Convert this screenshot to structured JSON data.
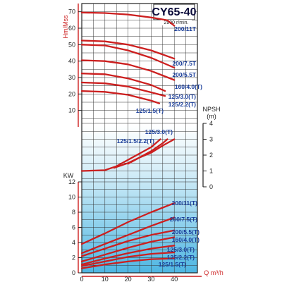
{
  "chart_data": {
    "type": "line",
    "title": "CY65-40",
    "subtitle": "2900 r/min.",
    "xlabel": "Q m³/h",
    "xticks": [
      "0",
      "10",
      "20",
      "30",
      "40"
    ],
    "xlim": [
      0,
      50
    ],
    "colors": {
      "curve": "#cc1f1f",
      "label": "#1a3e9a",
      "axis_red": "#cc1f1f",
      "grid": "#333333",
      "frame": "#222222"
    },
    "head": {
      "ylabel": "Hm/Mss",
      "yticks": [
        "10",
        "20",
        "30",
        "40",
        "50",
        "60",
        "70"
      ],
      "ylim": [
        0,
        75
      ],
      "series": [
        {
          "name": "200/11T",
          "x": [
            0,
            10,
            20,
            30,
            37,
            40
          ],
          "y": [
            69.5,
            69.2,
            68.3,
            66.5,
            64.8,
            61.5
          ]
        },
        {
          "name": "200/7.5T",
          "x": [
            0,
            10,
            20,
            30,
            40
          ],
          "y": [
            52.5,
            52,
            50,
            46.5,
            41.5
          ]
        },
        {
          "name": "200/5.5T",
          "x": [
            0,
            10,
            20,
            30,
            40
          ],
          "y": [
            50,
            49.5,
            46.5,
            42,
            36
          ]
        },
        {
          "name": "160/4.0(T)",
          "x": [
            0,
            10,
            20,
            30,
            40
          ],
          "y": [
            40.5,
            40,
            38,
            34,
            28.5
          ]
        },
        {
          "name": "125/3.0(T)",
          "x": [
            0,
            10,
            20,
            30,
            36
          ],
          "y": [
            32.5,
            32,
            29.5,
            25.5,
            21.8
          ]
        },
        {
          "name": "125/2.2(T)",
          "x": [
            0,
            10,
            20,
            30,
            36
          ],
          "y": [
            27,
            26.5,
            24.5,
            21,
            18.8
          ]
        },
        {
          "name": "125/1.5(T)",
          "x": [
            0,
            10,
            20,
            30,
            33.5
          ],
          "y": [
            21.8,
            21.3,
            19.5,
            16,
            14.3
          ]
        }
      ],
      "labels": [
        "200/11T",
        "200/7.5T",
        "200/5.5T",
        "160/4.0(T)",
        "125/3.0(T)",
        "125/2.2(T)",
        "125/1.5(T)"
      ]
    },
    "npsh": {
      "ylabel": "NPSH",
      "unit": "(m)",
      "yticks": [
        "0",
        "1",
        "2",
        "3",
        "4"
      ],
      "ylim": [
        0,
        4
      ],
      "series": [
        {
          "name": "125/3.0(T)",
          "x": [
            0,
            10,
            15,
            20,
            25,
            30,
            34
          ],
          "y": [
            1.0,
            1.05,
            1.3,
            1.7,
            2.1,
            2.5,
            3.0
          ]
        },
        {
          "name": "125/1.5/2.2(T)",
          "x": [
            14,
            20,
            25,
            30,
            35,
            37
          ],
          "y": [
            1.2,
            1.5,
            1.85,
            2.25,
            2.75,
            3.0
          ]
        },
        {
          "name": "",
          "x": [
            20,
            25,
            30,
            35,
            40
          ],
          "y": [
            1.45,
            1.85,
            2.15,
            2.6,
            3.0
          ]
        }
      ],
      "labels": [
        "125/3.0(T)",
        "125/1.5/2.2(T)"
      ]
    },
    "power": {
      "ylabel": "KW",
      "yticks": [
        "0",
        "2",
        "4",
        "6",
        "8",
        "10",
        "12"
      ],
      "ylim": [
        0,
        12
      ],
      "series": [
        {
          "name": "200/11(T)",
          "x": [
            0,
            10,
            20,
            30,
            40
          ],
          "y": [
            3.8,
            5.2,
            6.7,
            8.0,
            9.2
          ]
        },
        {
          "name": "200/7.5(T)",
          "x": [
            0,
            10,
            20,
            30,
            40
          ],
          "y": [
            2.6,
            3.8,
            5.0,
            6.2,
            7.3
          ]
        },
        {
          "name": "200/5.5(T)",
          "x": [
            0,
            10,
            20,
            30,
            40
          ],
          "y": [
            2.2,
            3.2,
            4.2,
            5.0,
            5.6
          ]
        },
        {
          "name": "160/4.0(T)",
          "x": [
            0,
            10,
            20,
            30,
            40
          ],
          "y": [
            1.5,
            2.4,
            3.3,
            4.1,
            4.7
          ]
        },
        {
          "name": "125/3.0(T)",
          "x": [
            0,
            10,
            20,
            30,
            40
          ],
          "y": [
            1.1,
            1.9,
            2.6,
            3.2,
            3.6
          ]
        },
        {
          "name": "125/2.2(T)",
          "x": [
            0,
            10,
            20,
            30,
            40
          ],
          "y": [
            0.9,
            1.5,
            2.1,
            2.5,
            2.7
          ]
        },
        {
          "name": "125/1.5(T)",
          "x": [
            0,
            10,
            20,
            30,
            40
          ],
          "y": [
            0.6,
            1.1,
            1.5,
            1.8,
            1.9
          ]
        }
      ],
      "labels": [
        "200/11(T)",
        "200/7.5(T)",
        "200/5.5(T)",
        "160/4.0(T)",
        "125/3.0(T)",
        "125/2.2(T)",
        "125/1.5(T)"
      ]
    },
    "grid": true
  }
}
